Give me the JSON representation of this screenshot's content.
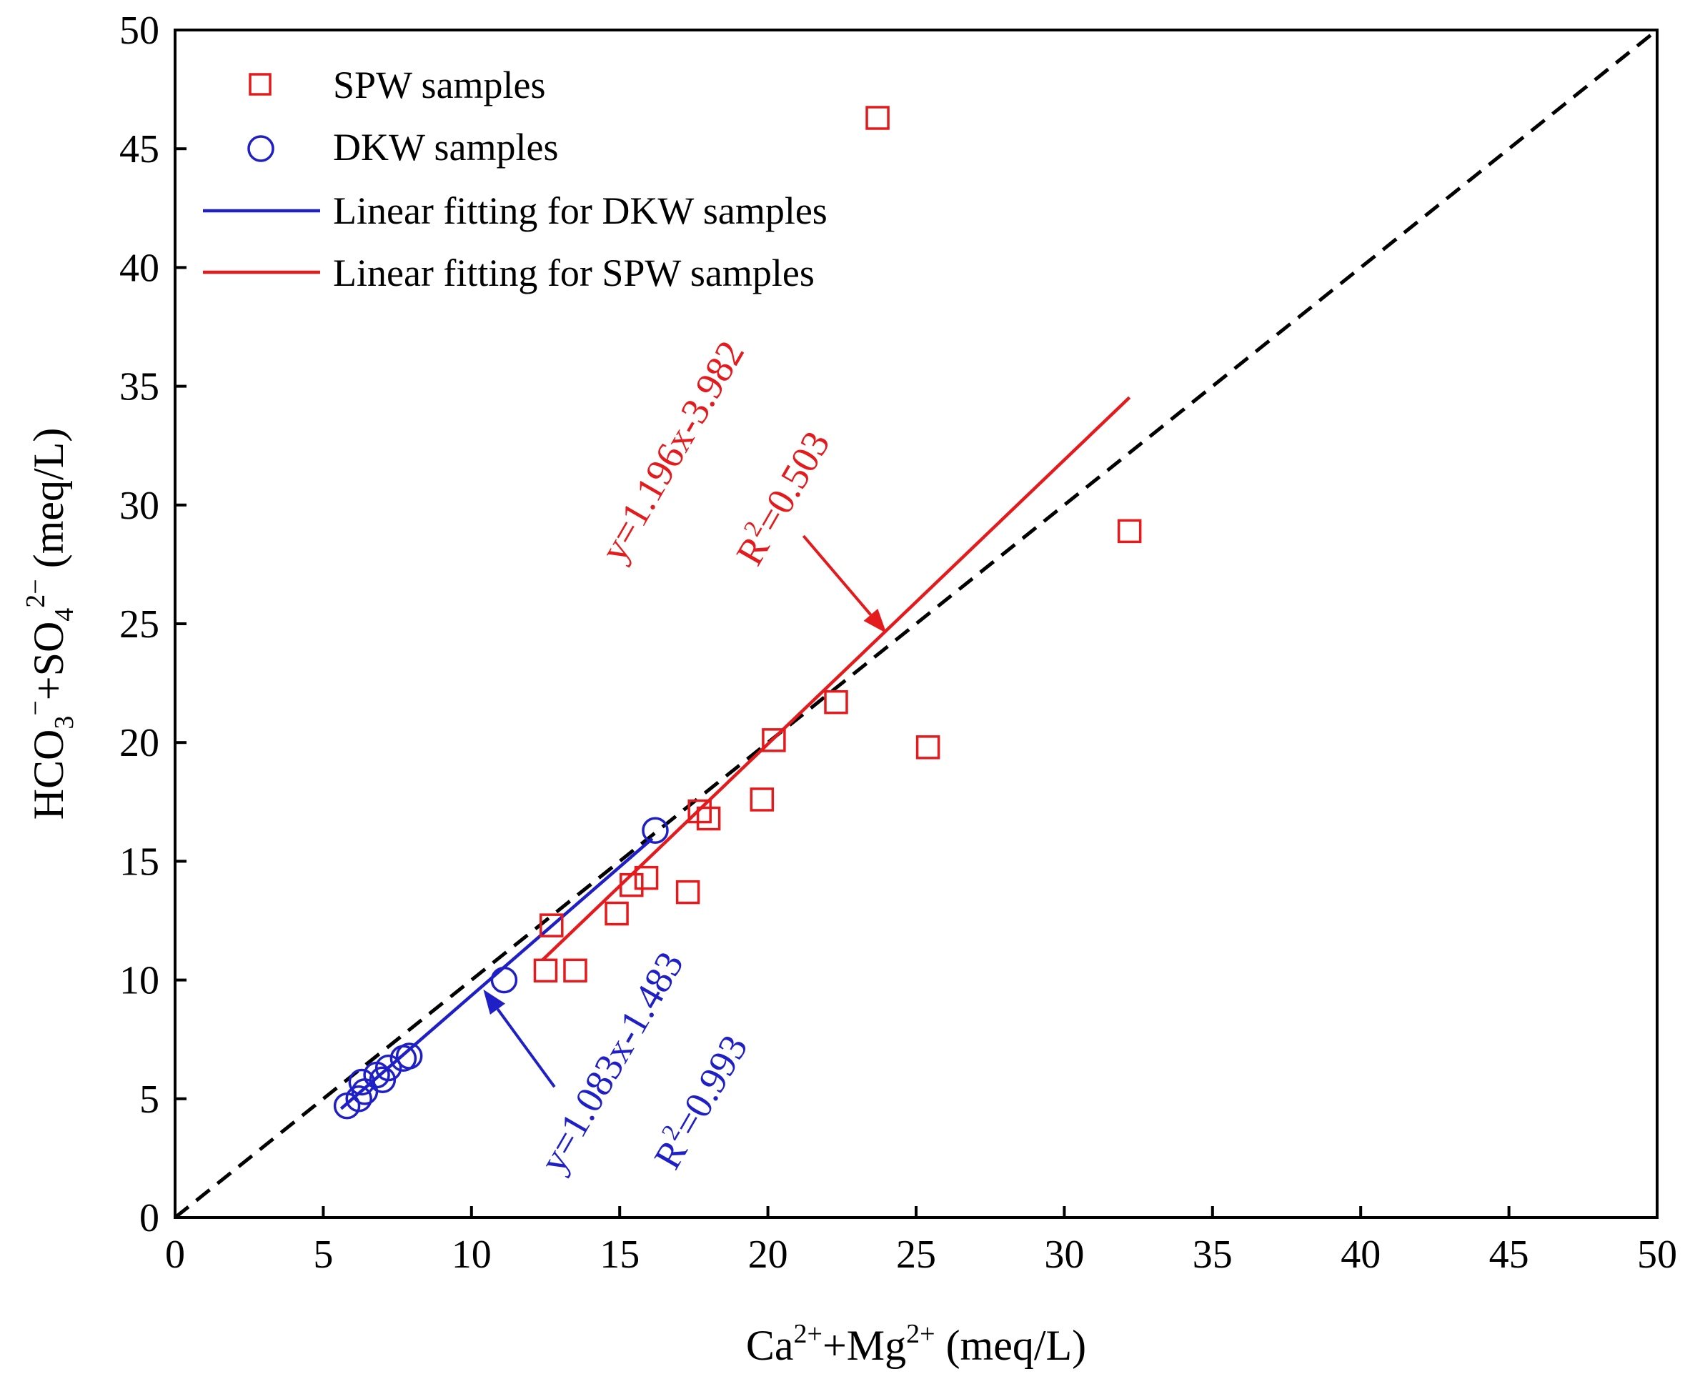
{
  "chart_data": {
    "type": "scatter",
    "xlabel": {
      "base": "Ca",
      "sup1": "2+",
      "mid": "+Mg",
      "sup2": "2+",
      "unit": " (meq/L)"
    },
    "ylabel": {
      "p1": "HCO",
      "sub1": "3",
      "sup1": "−",
      "p2": "+SO",
      "sub2": "4",
      "sup2": "2−",
      "unit": " (meq/L)"
    },
    "xlim": [
      0,
      50
    ],
    "ylim": [
      0,
      50
    ],
    "xticks": [
      "0",
      "5",
      "10",
      "15",
      "20",
      "25",
      "30",
      "35",
      "40",
      "45",
      "50"
    ],
    "yticks": [
      "0",
      "5",
      "10",
      "15",
      "20",
      "25",
      "30",
      "35",
      "40",
      "45",
      "50"
    ],
    "reference_line": {
      "name": "1:1 line",
      "x": [
        0,
        50
      ],
      "y": [
        0,
        50
      ],
      "color": "#000000",
      "style": "dashed"
    },
    "series": [
      {
        "name": "SPW samples",
        "marker": "square",
        "color": "#e41a1c",
        "points": [
          [
            12.5,
            10.4
          ],
          [
            13.5,
            10.4
          ],
          [
            12.7,
            12.3
          ],
          [
            14.9,
            12.8
          ],
          [
            15.4,
            14.0
          ],
          [
            15.9,
            14.3
          ],
          [
            17.3,
            13.7
          ],
          [
            17.7,
            17.1
          ],
          [
            18.0,
            16.8
          ],
          [
            19.8,
            17.6
          ],
          [
            20.2,
            20.1
          ],
          [
            22.3,
            21.7
          ],
          [
            25.4,
            19.8
          ],
          [
            32.2,
            28.9
          ],
          [
            23.7,
            46.3
          ]
        ]
      },
      {
        "name": "DKW samples",
        "marker": "circle",
        "color": "#1f1fc8",
        "points": [
          [
            5.8,
            4.7
          ],
          [
            6.2,
            5.0
          ],
          [
            6.3,
            5.7
          ],
          [
            6.4,
            5.3
          ],
          [
            6.8,
            6.0
          ],
          [
            7.0,
            5.8
          ],
          [
            7.2,
            6.3
          ],
          [
            7.7,
            6.7
          ],
          [
            7.9,
            6.8
          ],
          [
            11.1,
            10.0
          ],
          [
            16.2,
            16.3
          ]
        ]
      }
    ],
    "fits": [
      {
        "name": "Linear fitting for DKW samples",
        "color": "#1f1fc8",
        "slope": 1.083,
        "intercept": -1.483,
        "x": [
          5.6,
          16.1
        ],
        "equation": "y=1.083x-1.483",
        "r2_base": "R",
        "r2_sup": "2",
        "r2_value": "=0.993"
      },
      {
        "name": "Linear fitting for SPW samples",
        "color": "#e41a1c",
        "slope": 1.196,
        "intercept": -3.982,
        "x": [
          12.4,
          32.2
        ],
        "equation": "y=1.196x-3.982",
        "r2_base": "R",
        "r2_sup": "2",
        "r2_value": "=0.503"
      }
    ],
    "arrows": [
      {
        "target": "Linear fitting for SPW samples",
        "from": [
          21.2,
          28.7
        ],
        "to": [
          24.0,
          24.6
        ],
        "color": "#e41a1c"
      },
      {
        "target": "Linear fitting for DKW samples",
        "from": [
          12.8,
          5.5
        ],
        "to": [
          10.4,
          9.6
        ],
        "color": "#1f1fc8"
      }
    ],
    "legend": {
      "position": "top-left",
      "entries": [
        "SPW samples",
        "DKW samples",
        "Linear fitting for DKW samples",
        "Linear fitting for SPW samples"
      ]
    }
  }
}
